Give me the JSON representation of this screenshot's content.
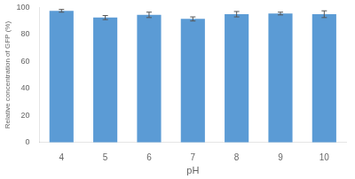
{
  "chart_data": {
    "type": "bar",
    "categories": [
      "4",
      "5",
      "6",
      "7",
      "8",
      "9",
      "10"
    ],
    "values": [
      97.5,
      92.5,
      94.5,
      91.5,
      95.0,
      95.5,
      95.0
    ],
    "errors": [
      1.0,
      1.5,
      2.0,
      1.5,
      2.0,
      1.0,
      2.5
    ],
    "color": "#5B9BD5",
    "xlabel": "pH",
    "ylabel": "Relative concentration of GFP (%)",
    "ylim": [
      0,
      100
    ],
    "yticks": [
      0,
      20,
      40,
      60,
      80,
      100
    ],
    "grid": false
  }
}
